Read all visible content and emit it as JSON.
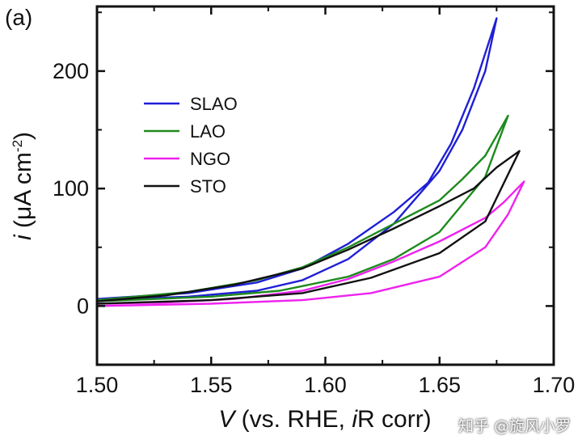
{
  "panel_label": "(a)",
  "watermark": "知乎 @旋风小罗",
  "chart_data": {
    "type": "line",
    "title": "",
    "xlabel": "V (vs. RHE, iR corr)",
    "xlabel_parts": {
      "v": "V",
      "mid": " (vs. RHE, ",
      "i": "i",
      "tail": "R corr)"
    },
    "ylabel": "i (μA cm⁻²)",
    "ylabel_parts": {
      "i": "i",
      "mid": " (μA cm",
      "sup": "-2",
      "tail": ")"
    },
    "xlim": [
      1.5,
      1.7
    ],
    "ylim": [
      -50,
      255
    ],
    "x_ticks": [
      1.5,
      1.55,
      1.6,
      1.65,
      1.7
    ],
    "x_tick_labels": [
      "1.50",
      "1.55",
      "1.60",
      "1.65",
      "1.70"
    ],
    "y_ticks": [
      0,
      100,
      200
    ],
    "y_tick_labels": [
      "0",
      "100",
      "200"
    ],
    "legend_position": "upper-left",
    "series": [
      {
        "name": "SLAO",
        "color": "#1f1fd6",
        "forward": [
          [
            1.5,
            5
          ],
          [
            1.54,
            8
          ],
          [
            1.57,
            13
          ],
          [
            1.59,
            22
          ],
          [
            1.61,
            40
          ],
          [
            1.63,
            70
          ],
          [
            1.65,
            115
          ],
          [
            1.66,
            150
          ],
          [
            1.67,
            200
          ],
          [
            1.675,
            245
          ]
        ],
        "backward": [
          [
            1.675,
            245
          ],
          [
            1.665,
            185
          ],
          [
            1.655,
            138
          ],
          [
            1.645,
            105
          ],
          [
            1.63,
            80
          ],
          [
            1.61,
            53
          ],
          [
            1.59,
            32
          ],
          [
            1.57,
            20
          ],
          [
            1.54,
            11
          ],
          [
            1.5,
            6
          ]
        ]
      },
      {
        "name": "LAO",
        "color": "#1e8a1e",
        "forward": [
          [
            1.5,
            4
          ],
          [
            1.55,
            8
          ],
          [
            1.58,
            13
          ],
          [
            1.61,
            25
          ],
          [
            1.63,
            40
          ],
          [
            1.65,
            63
          ],
          [
            1.67,
            110
          ],
          [
            1.68,
            162
          ]
        ],
        "backward": [
          [
            1.68,
            162
          ],
          [
            1.67,
            128
          ],
          [
            1.66,
            108
          ],
          [
            1.65,
            90
          ],
          [
            1.63,
            70
          ],
          [
            1.61,
            50
          ],
          [
            1.59,
            33
          ],
          [
            1.57,
            22
          ],
          [
            1.54,
            12
          ],
          [
            1.5,
            5
          ]
        ]
      },
      {
        "name": "NGO",
        "color": "#ee22ee",
        "forward": [
          [
            1.5,
            0
          ],
          [
            1.55,
            2
          ],
          [
            1.59,
            5
          ],
          [
            1.62,
            11
          ],
          [
            1.65,
            25
          ],
          [
            1.67,
            50
          ],
          [
            1.68,
            78
          ],
          [
            1.687,
            106
          ]
        ],
        "backward": [
          [
            1.687,
            106
          ],
          [
            1.678,
            88
          ],
          [
            1.67,
            75
          ],
          [
            1.65,
            55
          ],
          [
            1.63,
            38
          ],
          [
            1.61,
            23
          ],
          [
            1.59,
            13
          ],
          [
            1.56,
            6
          ],
          [
            1.53,
            3
          ],
          [
            1.5,
            2
          ]
        ]
      },
      {
        "name": "STO",
        "color": "#111111",
        "forward": [
          [
            1.5,
            2
          ],
          [
            1.55,
            5
          ],
          [
            1.59,
            11
          ],
          [
            1.62,
            24
          ],
          [
            1.65,
            45
          ],
          [
            1.67,
            72
          ],
          [
            1.685,
            132
          ]
        ],
        "backward": [
          [
            1.685,
            132
          ],
          [
            1.675,
            118
          ],
          [
            1.665,
            100
          ],
          [
            1.65,
            85
          ],
          [
            1.63,
            66
          ],
          [
            1.61,
            48
          ],
          [
            1.59,
            32
          ],
          [
            1.56,
            18
          ],
          [
            1.53,
            9
          ],
          [
            1.5,
            4
          ]
        ]
      }
    ]
  }
}
